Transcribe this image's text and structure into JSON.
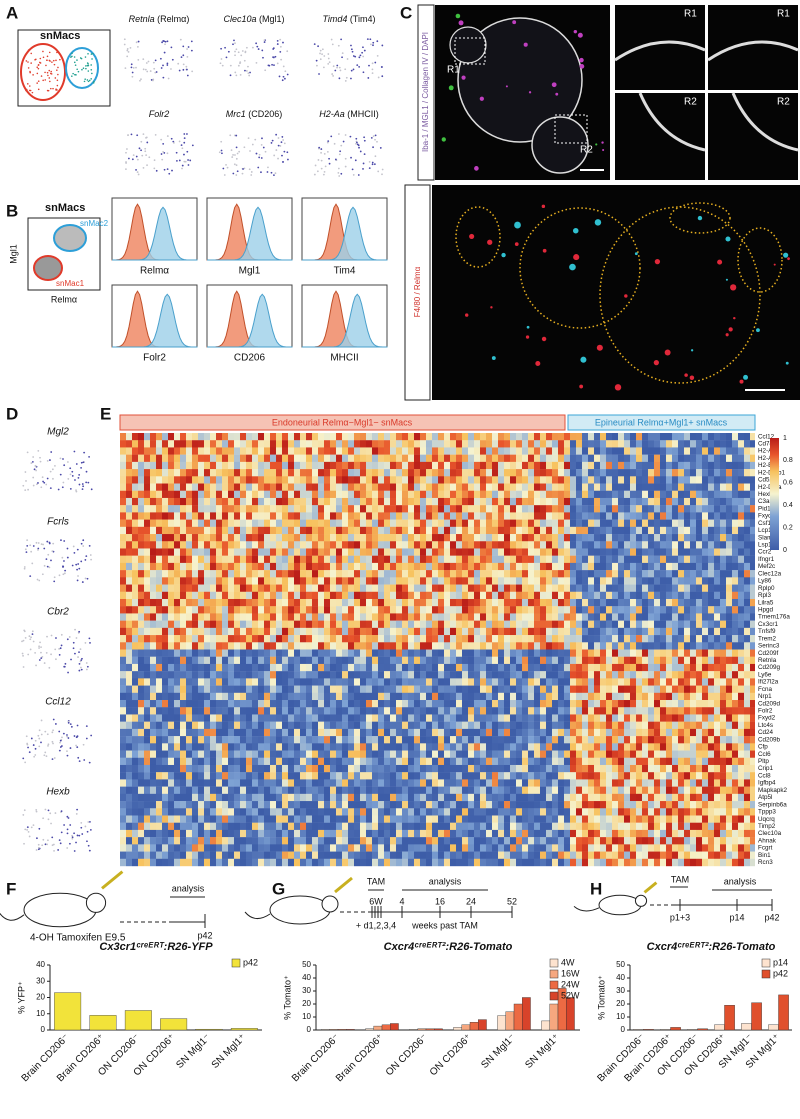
{
  "panel_labels": [
    "A",
    "B",
    "C",
    "D",
    "E",
    "F",
    "G",
    "H"
  ],
  "panel_a": {
    "title": "snMacs",
    "genes": [
      {
        "gene": "Retnla",
        "protein": "(Relmα)"
      },
      {
        "gene": "Clec10a",
        "protein": "(Mgl1)"
      },
      {
        "gene": "Timd4",
        "protein": "(Tim4)"
      },
      {
        "gene": "Folr2",
        "protein": ""
      },
      {
        "gene": "Mrc1",
        "protein": "(CD206)"
      },
      {
        "gene": "H2-Aa",
        "protein": "(MHCII)"
      }
    ]
  },
  "panel_b": {
    "title": "snMacs",
    "y_label": "Mgl1",
    "x_label": "Relmα",
    "gate_labels": [
      "snMac2",
      "snMac1"
    ],
    "histograms": [
      "Relmα",
      "Mgl1",
      "Tim4",
      "Folr2",
      "CD206",
      "MHCII"
    ]
  },
  "panel_c": {
    "top_stain": "Iba-1 / MGL1 / Collagen IV / DAPI",
    "regions": [
      "R1",
      "R2"
    ],
    "bottom_stain": "F4/80 / Relmα"
  },
  "panel_d": {
    "genes": [
      "Mgl2",
      "Fcrls",
      "Cbr2",
      "Ccl12",
      "Hexb"
    ]
  },
  "panel_e": {
    "group_labels": [
      "Endoneurial Relmα−Mgl1− snMacs",
      "Epineurial Relmα+Mgl1+ snMacs"
    ],
    "genes": [
      "Ccl12",
      "Cd74",
      "H2-Aa",
      "H2-Ab1",
      "H2-Eb1",
      "H2-DMb1",
      "Cd52",
      "H2-DMa",
      "Hexb",
      "C3ar1",
      "Pid1",
      "Fxyd5",
      "Csf1",
      "Lcp1",
      "Slamf9",
      "Lsp1",
      "Ccr2",
      "Ifngr1",
      "Mef2c",
      "Clec12a",
      "Ly86",
      "Rplp0",
      "Rpl3",
      "Lilra5",
      "Hpgd",
      "Tmem176a",
      "Cx3cr1",
      "Tnfsf9",
      "Trem2",
      "Serinc3",
      "Cd209f",
      "Retnla",
      "Cd209g",
      "Ly6e",
      "Ifi27l2a",
      "Fcna",
      "Nrp1",
      "Cd209d",
      "Folr2",
      "Fxyd2",
      "Ltc4s",
      "Cd24",
      "Cd209b",
      "Cfp",
      "Ccl6",
      "Pltp",
      "Crip1",
      "Ccl8",
      "Igfbp4",
      "Mapkapk2",
      "Atp5l",
      "Serpinb6a",
      "Tppp3",
      "Uqcrq",
      "Timp2",
      "Clec10a",
      "Ahnak",
      "Fcgrt",
      "Bin1",
      "Rcn3"
    ],
    "colorbar_ticks": [
      0,
      0.2,
      0.4,
      0.6,
      0.8,
      1
    ]
  },
  "timelines": {
    "F": {
      "analysis": "analysis",
      "injection": "4-OH Tamoxifen E9.5",
      "end": "p42"
    },
    "G": {
      "tam": "TAM",
      "analysis": "analysis",
      "start": "6W",
      "doses": "+ d1,2,3,4",
      "weeks": [
        "4",
        "16",
        "24",
        "52"
      ],
      "unit": "weeks past TAM"
    },
    "H": {
      "tam": "TAM",
      "analysis": "analysis",
      "start": "p1+3",
      "points": [
        "p14",
        "p42"
      ]
    }
  },
  "chart_data": [
    {
      "type": "bar",
      "title": "Cx3cr1ᶜʳᵉᴱᴿᵀ:R26-YFP",
      "y_label": "% YFP⁺",
      "categories": [
        "Brain CD206⁻",
        "Brain CD206⁺",
        "ON CD206⁻",
        "ON CD206⁺",
        "SN Mgl1⁻",
        "SN Mgl1⁺"
      ],
      "series": [
        {
          "name": "p42",
          "color": "#f2e33a",
          "values": [
            23,
            9,
            12,
            7,
            0.5,
            1
          ]
        }
      ],
      "ylim": [
        0,
        40
      ],
      "yticks": [
        0,
        10,
        20,
        30,
        40
      ],
      "legend": "upper right"
    },
    {
      "type": "bar",
      "title": "Cxcr4ᶜʳᵉᴱᴿᵀ²:R26-Tomato",
      "y_label": "% Tomato⁺",
      "categories": [
        "Brain CD206⁻",
        "Brain CD206⁺",
        "ON CD206⁻",
        "ON CD206⁺",
        "SN Mgl1⁻",
        "SN Mgl1⁺"
      ],
      "series": [
        {
          "name": "4W",
          "color": "#fde3cf",
          "values": [
            0.5,
            1,
            0.5,
            2,
            11,
            7
          ]
        },
        {
          "name": "16W",
          "color": "#f6a77f",
          "values": [
            0.5,
            3,
            1,
            4,
            14,
            20
          ]
        },
        {
          "name": "24W",
          "color": "#ec6a43",
          "values": [
            0.5,
            4,
            1,
            6,
            20,
            32
          ]
        },
        {
          "name": "52W",
          "color": "#d8432a",
          "values": [
            0.5,
            5,
            1,
            8,
            25,
            25
          ]
        }
      ],
      "ylim": [
        0,
        50
      ],
      "yticks": [
        0,
        10,
        20,
        30,
        40,
        50
      ],
      "legend": "upper right"
    },
    {
      "type": "bar",
      "title": "Cxcr4ᶜʳᵉᴱᴿᵀ²:R26-Tomato",
      "y_label": "% Tomato⁺",
      "categories": [
        "Brain CD206⁻",
        "Brain CD206⁺",
        "ON CD206⁻",
        "ON CD206⁺",
        "SN Mgl1⁻",
        "SN Mgl1⁺"
      ],
      "series": [
        {
          "name": "p14",
          "color": "#fde3cf",
          "values": [
            0.5,
            0.5,
            0.5,
            4,
            5,
            4
          ]
        },
        {
          "name": "p42",
          "color": "#e0502d",
          "values": [
            0.5,
            2,
            1,
            19,
            21,
            27
          ]
        }
      ],
      "ylim": [
        0,
        50
      ],
      "yticks": [
        0,
        10,
        20,
        30,
        40,
        50
      ],
      "legend": "upper right"
    }
  ]
}
